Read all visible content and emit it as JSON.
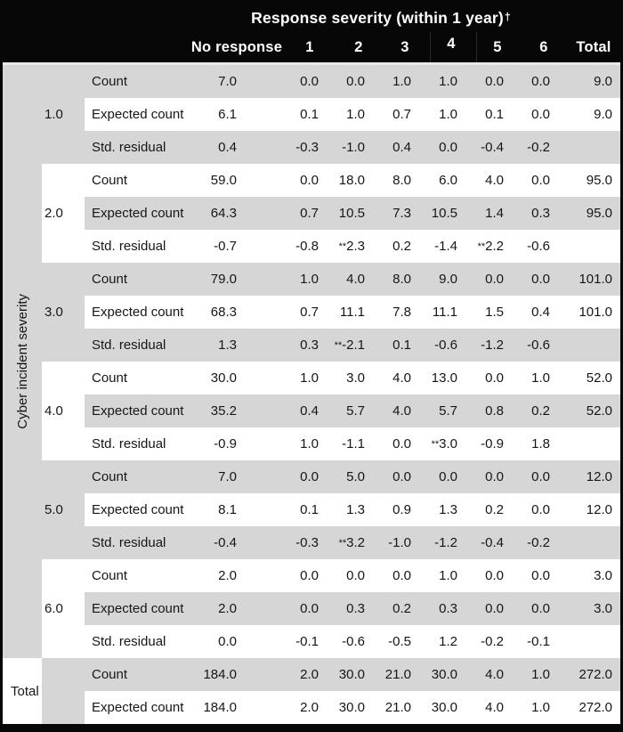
{
  "header": {
    "title": "Response severity (within 1 year)",
    "dagger": "†",
    "columns": [
      "No response",
      "1",
      "2",
      "3",
      "4",
      "5",
      "6",
      "Total"
    ]
  },
  "row_axis_label": "Cyber incident severity",
  "row_labels": {
    "count": "Count",
    "expected": "Expected count",
    "residual": "Std. residual"
  },
  "total_label": "Total",
  "colors": {
    "header_bg": "#070707",
    "stripe_gray": "#d6d6d6",
    "stripe_white": "#ffffff"
  },
  "groups": [
    {
      "label": "1.0",
      "count": [
        "7.0",
        "0.0",
        "0.0",
        "1.0",
        "1.0",
        "0.0",
        "0.0",
        "9.0"
      ],
      "expected": [
        "6.1",
        "0.1",
        "1.0",
        "0.7",
        "1.0",
        "0.1",
        "0.0",
        "9.0"
      ],
      "residual": [
        "0.4",
        "-0.3",
        "-1.0",
        "0.4",
        "0.0",
        "-0.4",
        "-0.2",
        ""
      ]
    },
    {
      "label": "2.0",
      "count": [
        "59.0",
        "0.0",
        "18.0",
        "8.0",
        "6.0",
        "4.0",
        "0.0",
        "95.0"
      ],
      "expected": [
        "64.3",
        "0.7",
        "10.5",
        "7.3",
        "10.5",
        "1.4",
        "0.3",
        "95.0"
      ],
      "residual": [
        "-0.7",
        "-0.8",
        "**2.3",
        "0.2",
        "-1.4",
        "**2.2",
        "-0.6",
        ""
      ]
    },
    {
      "label": "3.0",
      "count": [
        "79.0",
        "1.0",
        "4.0",
        "8.0",
        "9.0",
        "0.0",
        "0.0",
        "101.0"
      ],
      "expected": [
        "68.3",
        "0.7",
        "11.1",
        "7.8",
        "11.1",
        "1.5",
        "0.4",
        "101.0"
      ],
      "residual": [
        "1.3",
        "0.3",
        "**-2.1",
        "0.1",
        "-0.6",
        "-1.2",
        "-0.6",
        ""
      ]
    },
    {
      "label": "4.0",
      "count": [
        "30.0",
        "1.0",
        "3.0",
        "4.0",
        "13.0",
        "0.0",
        "1.0",
        "52.0"
      ],
      "expected": [
        "35.2",
        "0.4",
        "5.7",
        "4.0",
        "5.7",
        "0.8",
        "0.2",
        "52.0"
      ],
      "residual": [
        "-0.9",
        "1.0",
        "-1.1",
        "0.0",
        "**3.0",
        "-0.9",
        "1.8",
        ""
      ]
    },
    {
      "label": "5.0",
      "count": [
        "7.0",
        "0.0",
        "5.0",
        "0.0",
        "0.0",
        "0.0",
        "0.0",
        "12.0"
      ],
      "expected": [
        "8.1",
        "0.1",
        "1.3",
        "0.9",
        "1.3",
        "0.2",
        "0.0",
        "12.0"
      ],
      "residual": [
        "-0.4",
        "-0.3",
        "**3.2",
        "-1.0",
        "-1.2",
        "-0.4",
        "-0.2",
        ""
      ]
    },
    {
      "label": "6.0",
      "count": [
        "2.0",
        "0.0",
        "0.0",
        "0.0",
        "1.0",
        "0.0",
        "0.0",
        "3.0"
      ],
      "expected": [
        "2.0",
        "0.0",
        "0.3",
        "0.2",
        "0.3",
        "0.0",
        "0.0",
        "3.0"
      ],
      "residual": [
        "0.0",
        "-0.1",
        "-0.6",
        "-0.5",
        "1.2",
        "-0.2",
        "-0.1",
        ""
      ]
    }
  ],
  "total": {
    "label": "Total",
    "count": [
      "184.0",
      "2.0",
      "30.0",
      "21.0",
      "30.0",
      "4.0",
      "1.0",
      "272.0"
    ],
    "expected": [
      "184.0",
      "2.0",
      "30.0",
      "21.0",
      "30.0",
      "4.0",
      "1.0",
      "272.0"
    ]
  }
}
